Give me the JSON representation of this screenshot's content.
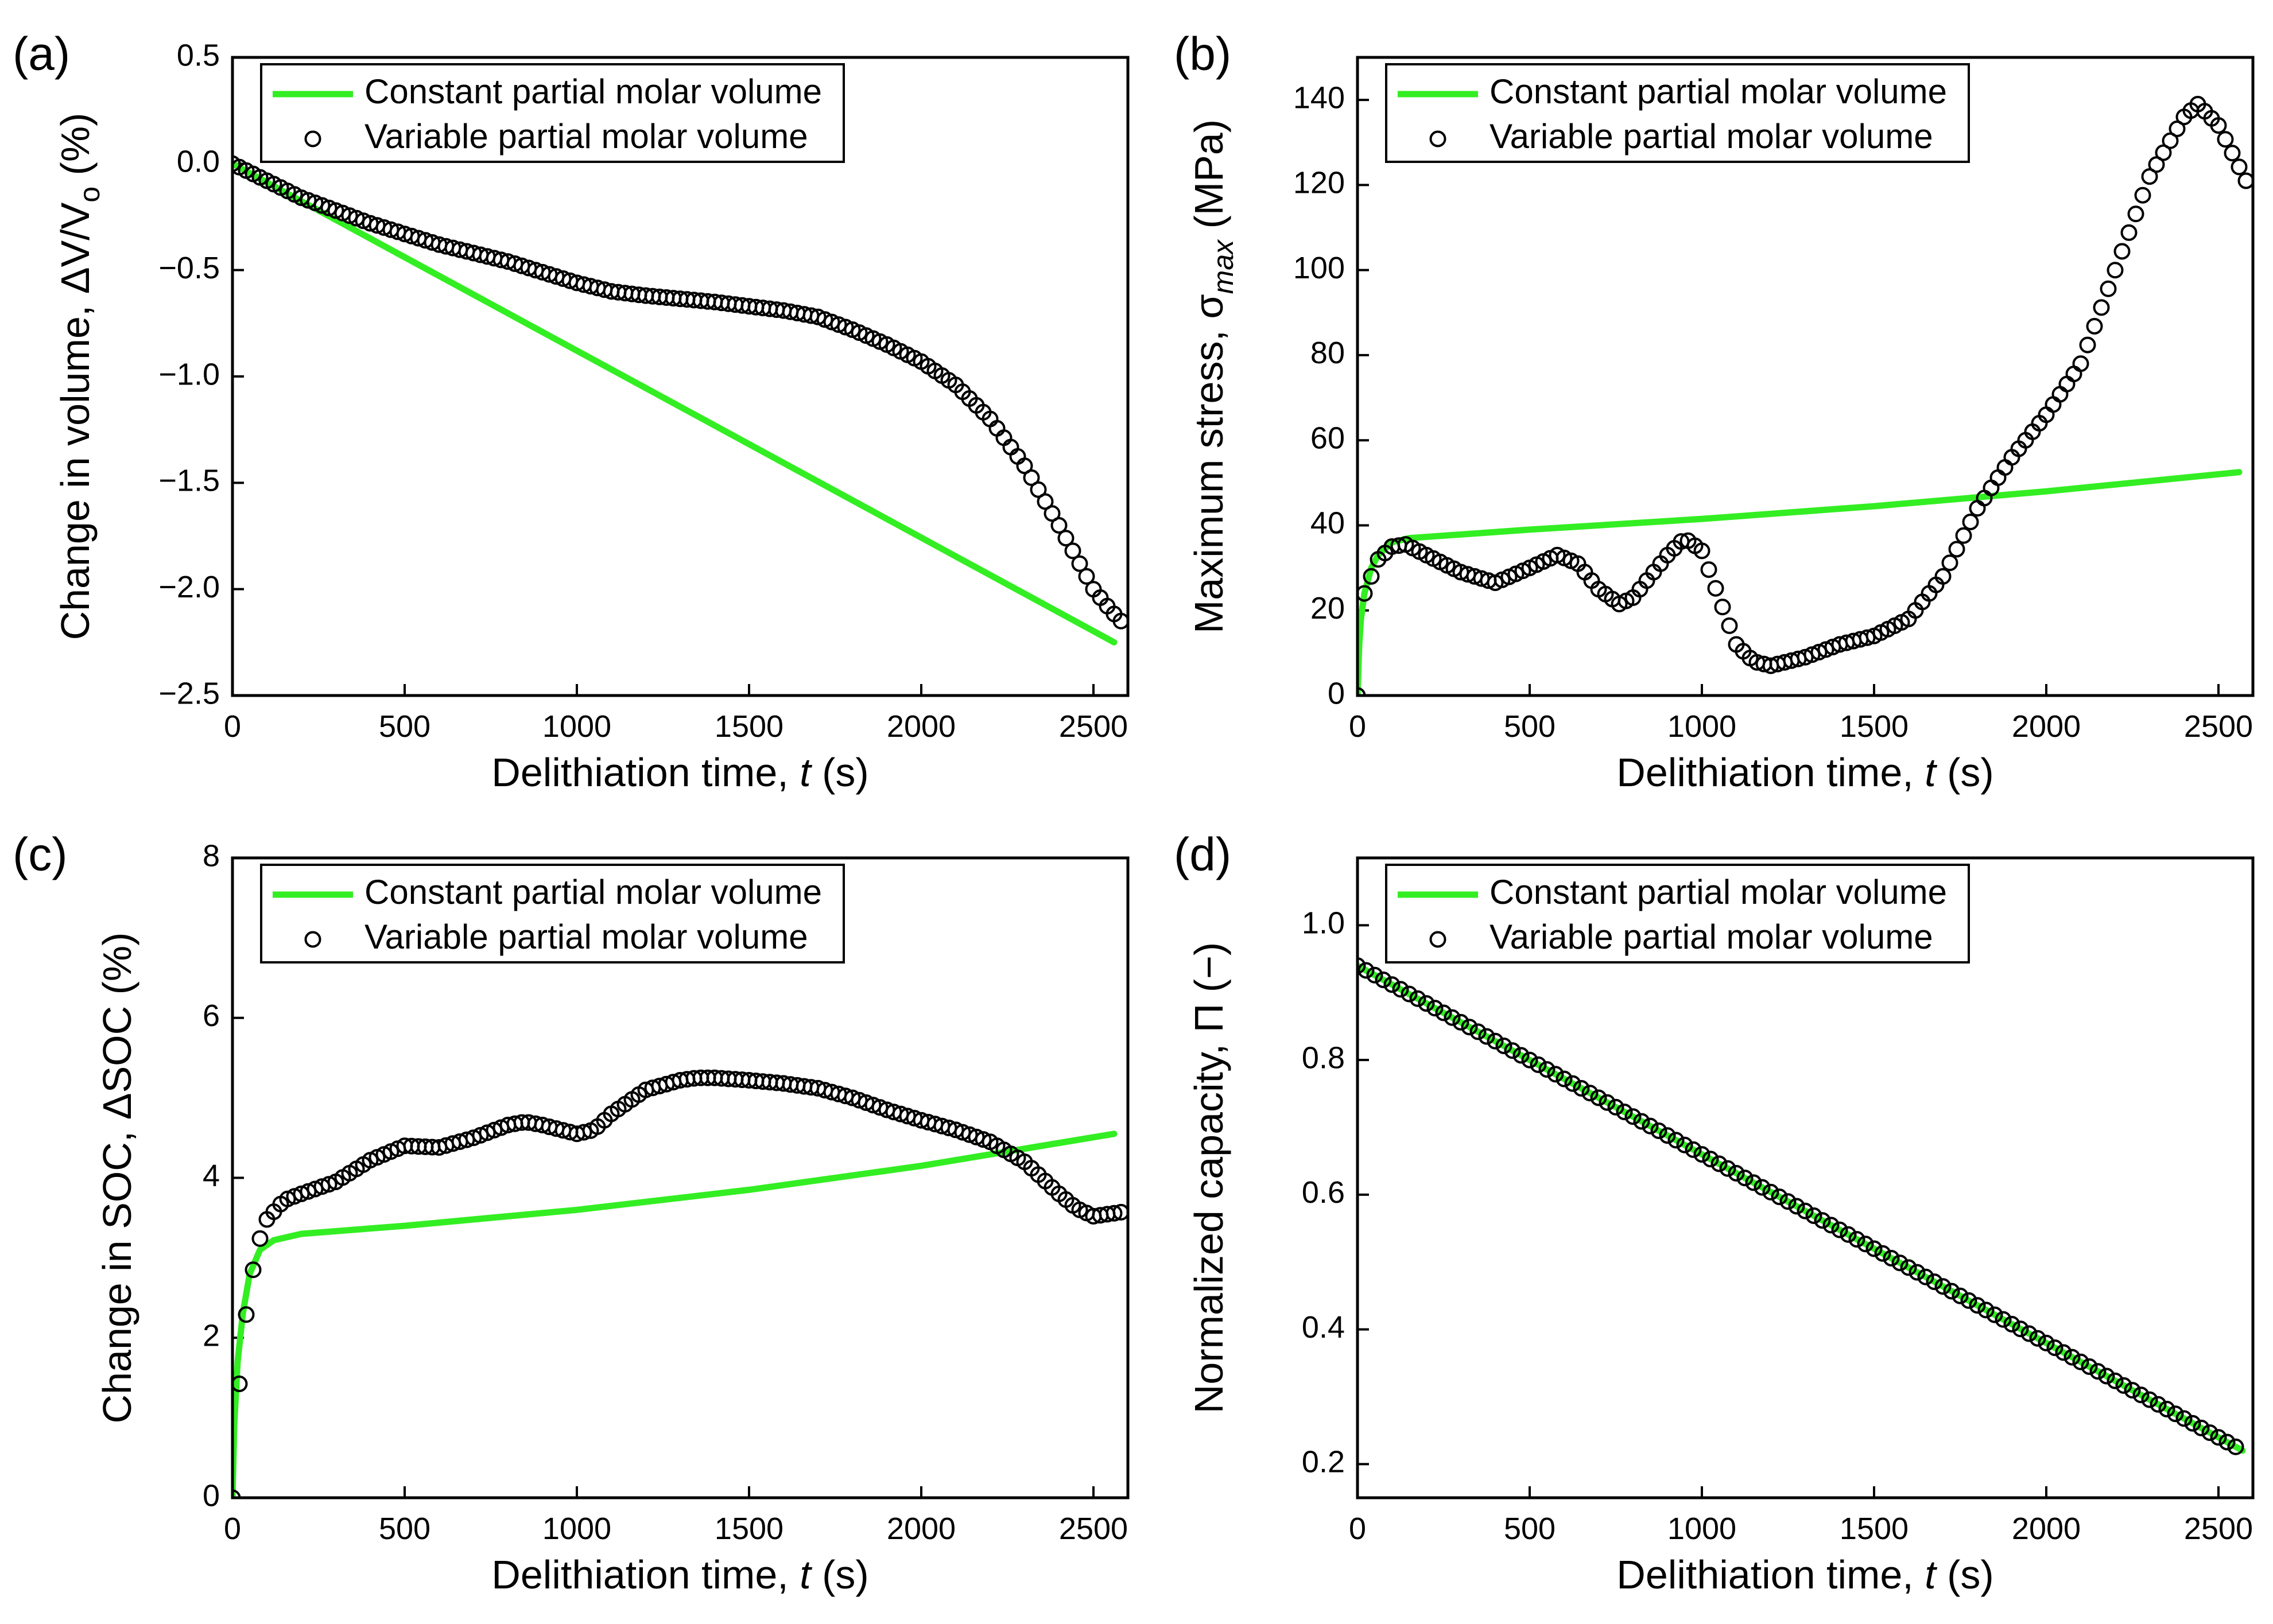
{
  "colors": {
    "constant": "#33ee22",
    "variable_marker": "#000000",
    "axes": "#000000",
    "background": "#ffffff"
  },
  "chart_data": [
    {
      "panel": "(a)",
      "type": "line",
      "xlabel": {
        "main": "Delithiation time, ",
        "italic": "t",
        "unit": " (s)"
      },
      "ylabel": {
        "main": "Change in volume, ",
        "symbol": "ΔV/V",
        "sub": "o",
        "unit": " (%)"
      },
      "xlim": [
        0,
        2600
      ],
      "ylim": [
        -2.5,
        0.5
      ],
      "xticks": [
        0,
        500,
        1000,
        1500,
        2000,
        2500
      ],
      "xtick_labels": [
        "0",
        "500",
        "1000",
        "1500",
        "2000",
        "2500"
      ],
      "yticks": [
        -2.5,
        -2.0,
        -1.5,
        -1.0,
        -0.5,
        0.0,
        0.5
      ],
      "ytick_labels": [
        "−2.5",
        "−2.0",
        "−1.5",
        "−1.0",
        "−0.5",
        "0.0",
        "0.5"
      ],
      "legend": {
        "position": "top-left",
        "entries": [
          "Constant partial molar volume",
          "Variable partial molar volume"
        ]
      },
      "series": [
        {
          "name": "Constant partial molar volume",
          "style": "line",
          "x": [
            0,
            2560
          ],
          "y": [
            0.0,
            -2.25
          ]
        },
        {
          "name": "Variable partial molar volume",
          "style": "markers",
          "x": [
            0,
            200,
            400,
            600,
            800,
            1000,
            1100,
            1200,
            1400,
            1600,
            1700,
            1800,
            1900,
            2000,
            2100,
            2200,
            2300,
            2400,
            2450,
            2500,
            2550,
            2580
          ],
          "y": [
            0.0,
            -0.16,
            -0.28,
            -0.38,
            -0.46,
            -0.56,
            -0.6,
            -0.62,
            -0.65,
            -0.69,
            -0.72,
            -0.78,
            -0.85,
            -0.93,
            -1.04,
            -1.2,
            -1.42,
            -1.7,
            -1.85,
            -2.0,
            -2.1,
            -2.15
          ]
        }
      ]
    },
    {
      "panel": "(b)",
      "type": "line",
      "xlabel": {
        "main": "Delithiation time, ",
        "italic": "t",
        "unit": " (s)"
      },
      "ylabel": {
        "main": "Maximum stress, ",
        "symbol": "σ",
        "sub": "max",
        "unit": " (MPa)"
      },
      "xlim": [
        0,
        2600
      ],
      "ylim": [
        0,
        150
      ],
      "xticks": [
        0,
        500,
        1000,
        1500,
        2000,
        2500
      ],
      "xtick_labels": [
        "0",
        "500",
        "1000",
        "1500",
        "2000",
        "2500"
      ],
      "yticks": [
        0,
        20,
        40,
        60,
        80,
        100,
        120,
        140
      ],
      "ytick_labels": [
        "0",
        "20",
        "40",
        "60",
        "80",
        "100",
        "120",
        "140"
      ],
      "legend": {
        "position": "top-left",
        "entries": [
          "Constant partial molar volume",
          "Variable partial molar volume"
        ]
      },
      "series": [
        {
          "name": "Constant partial molar volume",
          "style": "line",
          "x": [
            0,
            5,
            10,
            20,
            40,
            60,
            100,
            150,
            500,
            1000,
            1500,
            2000,
            2560
          ],
          "y": [
            0,
            12,
            18,
            24,
            30,
            33,
            36,
            37,
            39,
            41.5,
            44.5,
            48,
            52.5
          ]
        },
        {
          "name": "Variable partial molar volume",
          "style": "markers",
          "x": [
            0,
            20,
            60,
            100,
            140,
            200,
            300,
            400,
            500,
            580,
            640,
            700,
            760,
            800,
            900,
            950,
            1000,
            1050,
            1100,
            1150,
            1200,
            1300,
            1400,
            1500,
            1600,
            1700,
            1800,
            1900,
            2000,
            2100,
            2200,
            2300,
            2400,
            2440,
            2500,
            2580
          ],
          "y": [
            0,
            24,
            32,
            35,
            35.5,
            33,
            29,
            26.5,
            30,
            33,
            31,
            25,
            21.5,
            23,
            33,
            37,
            34,
            23,
            12,
            8,
            7,
            9,
            12,
            14,
            18,
            28,
            44,
            56,
            66,
            78,
            100,
            122,
            136,
            139,
            134,
            121
          ]
        }
      ]
    },
    {
      "panel": "(c)",
      "type": "line",
      "xlabel": {
        "main": "Delithiation time, ",
        "italic": "t",
        "unit": " (s)"
      },
      "ylabel": {
        "main": "Change in SOC, ",
        "symbol": "ΔSOC",
        "sub": "",
        "unit": " (%)"
      },
      "xlim": [
        0,
        2600
      ],
      "ylim": [
        0,
        8
      ],
      "xticks": [
        0,
        500,
        1000,
        1500,
        2000,
        2500
      ],
      "xtick_labels": [
        "0",
        "500",
        "1000",
        "1500",
        "2000",
        "2500"
      ],
      "yticks": [
        0,
        2,
        4,
        6,
        8
      ],
      "ytick_labels": [
        "0",
        "2",
        "4",
        "6",
        "8"
      ],
      "legend": {
        "position": "top-left",
        "entries": [
          "Constant partial molar volume",
          "Variable partial molar volume"
        ]
      },
      "series": [
        {
          "name": "Constant partial molar volume",
          "style": "line",
          "x": [
            0,
            5,
            15,
            30,
            50,
            80,
            120,
            200,
            500,
            1000,
            1500,
            2000,
            2560
          ],
          "y": [
            0,
            0.9,
            1.7,
            2.3,
            2.8,
            3.1,
            3.22,
            3.3,
            3.4,
            3.6,
            3.85,
            4.15,
            4.55
          ]
        },
        {
          "name": "Variable partial molar volume",
          "style": "markers",
          "x": [
            0,
            25,
            50,
            75,
            100,
            150,
            200,
            300,
            400,
            500,
            600,
            700,
            800,
            850,
            900,
            1000,
            1050,
            1100,
            1200,
            1300,
            1350,
            1400,
            1500,
            1600,
            1700,
            1800,
            1900,
            2000,
            2100,
            2200,
            2300,
            2400,
            2450,
            2500,
            2580
          ],
          "y": [
            0,
            1.78,
            2.63,
            3.18,
            3.48,
            3.72,
            3.8,
            3.95,
            4.22,
            4.4,
            4.38,
            4.5,
            4.66,
            4.7,
            4.66,
            4.55,
            4.6,
            4.8,
            5.1,
            5.22,
            5.25,
            5.25,
            5.22,
            5.18,
            5.12,
            5.0,
            4.85,
            4.72,
            4.6,
            4.45,
            4.2,
            3.8,
            3.62,
            3.52,
            3.57
          ]
        }
      ]
    },
    {
      "panel": "(d)",
      "type": "line",
      "xlabel": {
        "main": "Delithiation time, ",
        "italic": "t",
        "unit": " (s)"
      },
      "ylabel": {
        "main": "Normalized capacity, ",
        "symbol": "Π",
        "sub": "",
        "unit": " (−)"
      },
      "xlim": [
        0,
        2600
      ],
      "ylim": [
        0.15,
        1.1
      ],
      "xticks": [
        0,
        500,
        1000,
        1500,
        2000,
        2500
      ],
      "xtick_labels": [
        "0",
        "500",
        "1000",
        "1500",
        "2000",
        "2500"
      ],
      "yticks": [
        0.2,
        0.4,
        0.6,
        0.8,
        1.0
      ],
      "ytick_labels": [
        "0.2",
        "0.4",
        "0.6",
        "0.8",
        "1.0"
      ],
      "legend": {
        "position": "top-left",
        "entries": [
          "Constant partial molar volume",
          "Variable partial molar volume"
        ]
      },
      "series": [
        {
          "name": "Constant partial molar volume",
          "style": "line",
          "x": [
            0,
            2570
          ],
          "y": [
            0.94,
            0.22
          ]
        },
        {
          "name": "Variable partial molar volume",
          "style": "markers",
          "x": [
            0,
            2570
          ],
          "y": [
            0.94,
            0.22
          ]
        }
      ]
    }
  ]
}
